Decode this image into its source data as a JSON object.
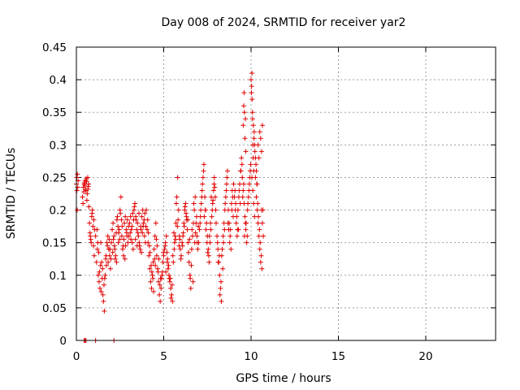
{
  "chart_data": {
    "type": "scatter",
    "title": "Day 008 of 2024, SRMTID for receiver yar2",
    "xlabel": "GPS time / hours",
    "ylabel": "SRMTID / TECUs",
    "xlim": [
      0,
      24
    ],
    "ylim": [
      0,
      0.45
    ],
    "xticks": [
      0,
      5,
      10,
      15,
      20
    ],
    "xtick_labels": [
      "0",
      "5",
      "10",
      "15",
      "20"
    ],
    "yticks": [
      0,
      0.05,
      0.1,
      0.15,
      0.2,
      0.25,
      0.3,
      0.35,
      0.4,
      0.45
    ],
    "ytick_labels": [
      "0",
      "0.05",
      "0.1",
      "0.15",
      "0.2",
      "0.25",
      "0.3",
      "0.35",
      "0.4",
      "0.45"
    ],
    "grid": true,
    "marker": "+",
    "color": "#e00000",
    "series": [
      {
        "name": "SRMTID",
        "x": [
          0.0,
          0.02,
          0.05,
          0.08,
          0.1,
          0.03,
          0.06,
          0.35,
          0.4,
          0.45,
          0.5,
          0.55,
          0.6,
          0.65,
          0.7,
          0.42,
          0.48,
          0.52,
          0.58,
          0.62,
          0.68,
          0.38,
          0.46,
          0.56,
          0.66,
          0.75,
          0.8,
          0.85,
          0.9,
          0.95,
          1.0,
          1.05,
          0.78,
          0.88,
          0.98,
          0.72,
          0.82,
          0.92,
          1.02,
          1.1,
          1.15,
          1.2,
          1.25,
          1.3,
          1.35,
          1.4,
          1.45,
          1.5,
          1.55,
          1.6,
          1.65,
          1.7,
          1.75,
          1.8,
          1.85,
          1.9,
          1.95,
          1.18,
          1.28,
          1.38,
          1.48,
          1.58,
          1.68,
          1.78,
          1.88,
          1.98,
          1.22,
          1.32,
          1.42,
          1.52,
          1.62,
          1.72,
          1.82,
          1.92,
          2.0,
          2.05,
          2.1,
          2.15,
          2.2,
          2.25,
          2.3,
          2.35,
          2.4,
          2.45,
          2.5,
          2.55,
          2.6,
          2.65,
          2.7,
          2.75,
          2.8,
          2.85,
          2.9,
          2.95,
          2.08,
          2.18,
          2.28,
          2.38,
          2.48,
          2.58,
          2.68,
          2.78,
          2.88,
          2.98,
          2.12,
          2.22,
          2.32,
          2.42,
          2.52,
          2.62,
          2.72,
          2.82,
          2.92,
          3.0,
          3.05,
          3.1,
          3.15,
          3.2,
          3.25,
          3.3,
          3.35,
          3.4,
          3.45,
          3.5,
          3.55,
          3.6,
          3.65,
          3.7,
          3.75,
          3.8,
          3.85,
          3.9,
          3.95,
          3.08,
          3.18,
          3.28,
          3.38,
          3.48,
          3.58,
          3.68,
          3.78,
          3.88,
          3.98,
          3.12,
          3.22,
          3.32,
          3.42,
          3.52,
          3.62,
          3.72,
          3.82,
          3.92,
          4.0,
          4.05,
          4.1,
          4.15,
          4.2,
          4.25,
          4.3,
          4.35,
          4.4,
          4.45,
          4.5,
          4.55,
          4.6,
          4.65,
          4.7,
          4.75,
          4.8,
          4.85,
          4.9,
          4.95,
          4.08,
          4.18,
          4.28,
          4.38,
          4.48,
          4.58,
          4.68,
          4.78,
          4.88,
          4.98,
          4.12,
          4.22,
          4.32,
          4.42,
          4.52,
          4.62,
          4.72,
          4.82,
          4.92,
          5.0,
          5.05,
          5.1,
          5.15,
          5.2,
          5.25,
          5.3,
          5.35,
          5.4,
          5.45,
          5.5,
          5.55,
          5.6,
          5.65,
          5.7,
          5.75,
          5.8,
          5.85,
          5.9,
          5.95,
          5.08,
          5.18,
          5.28,
          5.38,
          5.48,
          5.58,
          5.68,
          5.78,
          5.88,
          5.98,
          5.12,
          5.22,
          5.32,
          5.42,
          5.52,
          5.62,
          5.72,
          5.82,
          5.92,
          6.0,
          6.05,
          6.1,
          6.15,
          6.2,
          6.25,
          6.3,
          6.35,
          6.4,
          6.45,
          6.5,
          6.55,
          6.6,
          6.65,
          6.7,
          6.75,
          6.8,
          6.85,
          6.9,
          6.95,
          6.08,
          6.18,
          6.28,
          6.38,
          6.48,
          6.58,
          6.68,
          6.78,
          6.88,
          6.98,
          6.12,
          6.22,
          6.32,
          6.42,
          6.52,
          6.62,
          6.72,
          6.82,
          6.92,
          7.0,
          7.05,
          7.1,
          7.15,
          7.2,
          7.25,
          7.3,
          7.35,
          7.4,
          7.45,
          7.5,
          7.55,
          7.6,
          7.65,
          7.7,
          7.75,
          7.8,
          7.85,
          7.9,
          7.95,
          7.08,
          7.18,
          7.28,
          7.38,
          7.48,
          7.58,
          7.68,
          7.78,
          7.88,
          7.98,
          7.12,
          7.22,
          7.32,
          7.42,
          7.52,
          7.62,
          7.72,
          7.82,
          7.92,
          8.0,
          8.05,
          8.1,
          8.15,
          8.2,
          8.25,
          8.3,
          8.35,
          8.4,
          8.45,
          8.5,
          8.55,
          8.6,
          8.65,
          8.7,
          8.75,
          8.8,
          8.85,
          8.9,
          8.95,
          8.08,
          8.18,
          8.28,
          8.38,
          8.48,
          8.58,
          8.68,
          8.78,
          8.88,
          8.98,
          8.12,
          8.22,
          8.32,
          8.42,
          8.52,
          8.62,
          8.72,
          8.82,
          8.92,
          9.0,
          9.05,
          9.1,
          9.15,
          9.2,
          9.25,
          9.3,
          9.35,
          9.4,
          9.45,
          9.5,
          9.55,
          9.6,
          9.65,
          9.7,
          9.75,
          9.8,
          9.85,
          9.9,
          9.95,
          9.08,
          9.18,
          9.28,
          9.38,
          9.48,
          9.58,
          9.68,
          9.78,
          9.88,
          9.98,
          9.12,
          9.22,
          9.32,
          9.42,
          9.52,
          9.62,
          9.72,
          9.82,
          9.92,
          9.55,
          9.6,
          9.62,
          9.65,
          9.7,
          9.58,
          9.68,
          10.0,
          10.02,
          10.05,
          10.08,
          10.1,
          10.12,
          10.15,
          10.18,
          10.2,
          10.25,
          10.3,
          10.35,
          10.4,
          10.45,
          10.5,
          10.55,
          10.6,
          10.65,
          10.7,
          10.03,
          10.06,
          10.09,
          10.13,
          10.17,
          10.22,
          10.28,
          10.33,
          10.38,
          10.42,
          10.48,
          10.52,
          10.58,
          10.62,
          10.68,
          10.05,
          10.1,
          10.15,
          10.2,
          10.25,
          10.3,
          10.35,
          10.4,
          10.45,
          10.5,
          10.55,
          10.6,
          10.65,
          0.45,
          0.5,
          0.55,
          1.1,
          2.15
        ],
        "y": [
          0.24,
          0.25,
          0.2,
          0.235,
          0.245,
          0.23,
          0.255,
          0.22,
          0.235,
          0.24,
          0.245,
          0.23,
          0.215,
          0.25,
          0.24,
          0.228,
          0.238,
          0.232,
          0.244,
          0.225,
          0.236,
          0.21,
          0.242,
          0.248,
          0.232,
          0.18,
          0.16,
          0.15,
          0.195,
          0.175,
          0.185,
          0.17,
          0.165,
          0.19,
          0.145,
          0.205,
          0.155,
          0.2,
          0.13,
          0.16,
          0.12,
          0.14,
          0.1,
          0.09,
          0.08,
          0.15,
          0.12,
          0.11,
          0.06,
          0.045,
          0.1,
          0.13,
          0.15,
          0.16,
          0.14,
          0.13,
          0.11,
          0.17,
          0.135,
          0.115,
          0.095,
          0.085,
          0.125,
          0.145,
          0.155,
          0.125,
          0.15,
          0.105,
          0.075,
          0.07,
          0.095,
          0.115,
          0.12,
          0.14,
          0.15,
          0.17,
          0.18,
          0.16,
          0.14,
          0.13,
          0.12,
          0.19,
          0.15,
          0.17,
          0.2,
          0.22,
          0.16,
          0.14,
          0.13,
          0.18,
          0.19,
          0.17,
          0.16,
          0.15,
          0.135,
          0.145,
          0.165,
          0.175,
          0.155,
          0.185,
          0.145,
          0.125,
          0.165,
          0.175,
          0.155,
          0.125,
          0.185,
          0.165,
          0.195,
          0.175,
          0.155,
          0.145,
          0.185,
          0.16,
          0.18,
          0.19,
          0.17,
          0.15,
          0.14,
          0.2,
          0.21,
          0.19,
          0.17,
          0.18,
          0.16,
          0.15,
          0.14,
          0.17,
          0.19,
          0.2,
          0.18,
          0.16,
          0.15,
          0.165,
          0.175,
          0.185,
          0.155,
          0.145,
          0.195,
          0.175,
          0.165,
          0.185,
          0.175,
          0.155,
          0.195,
          0.205,
          0.185,
          0.165,
          0.145,
          0.135,
          0.175,
          0.195,
          0.2,
          0.17,
          0.15,
          0.13,
          0.11,
          0.09,
          0.08,
          0.1,
          0.12,
          0.14,
          0.16,
          0.18,
          0.13,
          0.11,
          0.09,
          0.07,
          0.06,
          0.08,
          0.1,
          0.12,
          0.185,
          0.145,
          0.115,
          0.095,
          0.125,
          0.155,
          0.105,
          0.085,
          0.095,
          0.135,
          0.165,
          0.135,
          0.105,
          0.075,
          0.115,
          0.145,
          0.125,
          0.095,
          0.105,
          0.13,
          0.14,
          0.15,
          0.16,
          0.12,
          0.11,
          0.1,
          0.09,
          0.08,
          0.07,
          0.06,
          0.12,
          0.14,
          0.16,
          0.18,
          0.22,
          0.25,
          0.2,
          0.16,
          0.14,
          0.145,
          0.135,
          0.115,
          0.095,
          0.085,
          0.165,
          0.155,
          0.175,
          0.145,
          0.125,
          0.105,
          0.125,
          0.095,
          0.065,
          0.13,
          0.15,
          0.21,
          0.185,
          0.155,
          0.13,
          0.15,
          0.16,
          0.18,
          0.2,
          0.21,
          0.19,
          0.17,
          0.15,
          0.12,
          0.1,
          0.08,
          0.14,
          0.16,
          0.18,
          0.2,
          0.22,
          0.18,
          0.16,
          0.14,
          0.145,
          0.175,
          0.195,
          0.185,
          0.155,
          0.115,
          0.09,
          0.15,
          0.19,
          0.175,
          0.165,
          0.205,
          0.185,
          0.135,
          0.095,
          0.17,
          0.21,
          0.165,
          0.15,
          0.15,
          0.17,
          0.19,
          0.21,
          0.23,
          0.25,
          0.27,
          0.22,
          0.2,
          0.18,
          0.16,
          0.14,
          0.12,
          0.15,
          0.17,
          0.19,
          0.21,
          0.23,
          0.25,
          0.22,
          0.18,
          0.22,
          0.26,
          0.2,
          0.15,
          0.13,
          0.18,
          0.2,
          0.24,
          0.2,
          0.2,
          0.24,
          0.19,
          0.17,
          0.135,
          0.16,
          0.22,
          0.215,
          0.235,
          0.18,
          0.16,
          0.14,
          0.12,
          0.1,
          0.08,
          0.06,
          0.14,
          0.16,
          0.18,
          0.2,
          0.22,
          0.24,
          0.26,
          0.2,
          0.18,
          0.16,
          0.14,
          0.2,
          0.22,
          0.15,
          0.13,
          0.09,
          0.11,
          0.17,
          0.23,
          0.18,
          0.15,
          0.21,
          0.19,
          0.12,
          0.07,
          0.13,
          0.15,
          0.21,
          0.25,
          0.17,
          0.17,
          0.23,
          0.24,
          0.22,
          0.2,
          0.18,
          0.16,
          0.2,
          0.22,
          0.24,
          0.26,
          0.28,
          0.25,
          0.23,
          0.21,
          0.19,
          0.17,
          0.15,
          0.2,
          0.22,
          0.24,
          0.26,
          0.23,
          0.19,
          0.17,
          0.21,
          0.27,
          0.24,
          0.18,
          0.16,
          0.23,
          0.27,
          0.21,
          0.17,
          0.23,
          0.26,
          0.22,
          0.16,
          0.18,
          0.21,
          0.25,
          0.33,
          0.38,
          0.35,
          0.31,
          0.29,
          0.36,
          0.34,
          0.4,
          0.38,
          0.41,
          0.35,
          0.3,
          0.28,
          0.26,
          0.32,
          0.3,
          0.25,
          0.22,
          0.2,
          0.18,
          0.16,
          0.14,
          0.12,
          0.2,
          0.18,
          0.16,
          0.39,
          0.37,
          0.34,
          0.33,
          0.31,
          0.29,
          0.27,
          0.24,
          0.21,
          0.19,
          0.17,
          0.15,
          0.13,
          0.11,
          0.2,
          0.25,
          0.23,
          0.21,
          0.19,
          0.28,
          0.26,
          0.24,
          0.3,
          0.28,
          0.32,
          0.31,
          0.29,
          0.33,
          0.0,
          0.0,
          0.0,
          0.0,
          0.0
        ]
      }
    ]
  }
}
